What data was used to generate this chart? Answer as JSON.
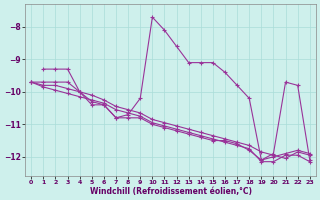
{
  "xlabel": "Windchill (Refroidissement éolien,°C)",
  "background_color": "#cef0ec",
  "grid_color": "#aaddd8",
  "line_color": "#993399",
  "xlim": [
    -0.5,
    23.5
  ],
  "ylim": [
    -12.6,
    -7.3
  ],
  "yticks": [
    -12,
    -11,
    -10,
    -9,
    -8
  ],
  "xticks": [
    0,
    1,
    2,
    3,
    4,
    5,
    6,
    7,
    8,
    9,
    10,
    11,
    12,
    13,
    14,
    15,
    16,
    17,
    18,
    19,
    20,
    21,
    22,
    23
  ],
  "s1_x": [
    1,
    2,
    3,
    4,
    5,
    6,
    7,
    8,
    9,
    10,
    11,
    12,
    13,
    14,
    15,
    16,
    17,
    18,
    19,
    20,
    21,
    22,
    23
  ],
  "s1_y": [
    -9.3,
    -9.3,
    -9.3,
    -10.0,
    -10.4,
    -10.4,
    -10.8,
    -10.7,
    -10.2,
    -7.7,
    -8.1,
    -8.6,
    -9.1,
    -9.1,
    -9.1,
    -9.4,
    -9.8,
    -10.2,
    -12.1,
    -11.9,
    -9.7,
    -9.8,
    -12.1
  ],
  "s2_x": [
    0,
    1,
    2,
    3,
    4,
    5,
    6,
    7,
    8,
    9,
    10,
    11,
    12,
    13,
    14,
    15,
    16,
    17,
    18,
    19,
    20,
    21,
    22,
    23
  ],
  "s2_y": [
    -9.7,
    -9.7,
    -9.7,
    -9.7,
    -10.0,
    -10.3,
    -10.4,
    -10.8,
    -10.8,
    -10.8,
    -11.0,
    -11.1,
    -11.2,
    -11.3,
    -11.4,
    -11.5,
    -11.5,
    -11.6,
    -11.8,
    -12.1,
    -12.0,
    -11.9,
    -11.8,
    -11.9
  ],
  "s3_x": [
    0,
    1,
    2,
    3,
    4,
    5,
    6,
    7,
    8,
    9,
    10,
    11,
    12,
    13,
    14,
    15,
    16,
    17,
    18,
    19,
    20,
    21,
    22,
    23
  ],
  "s3_y": [
    -9.7,
    -9.8,
    -9.8,
    -9.9,
    -10.0,
    -10.1,
    -10.25,
    -10.45,
    -10.55,
    -10.65,
    -10.85,
    -10.95,
    -11.05,
    -11.15,
    -11.25,
    -11.35,
    -11.45,
    -11.55,
    -11.65,
    -11.85,
    -11.95,
    -12.05,
    -11.85,
    -11.95
  ],
  "s4_x": [
    0,
    1,
    2,
    3,
    4,
    5,
    6,
    7,
    8,
    9,
    10,
    11,
    12,
    13,
    14,
    15,
    16,
    17,
    18,
    19,
    20,
    21,
    22,
    23
  ],
  "s4_y": [
    -9.7,
    -9.85,
    -9.95,
    -10.05,
    -10.15,
    -10.25,
    -10.35,
    -10.55,
    -10.65,
    -10.75,
    -10.95,
    -11.05,
    -11.15,
    -11.25,
    -11.35,
    -11.45,
    -11.55,
    -11.65,
    -11.75,
    -12.15,
    -12.15,
    -11.95,
    -11.95,
    -12.15
  ]
}
